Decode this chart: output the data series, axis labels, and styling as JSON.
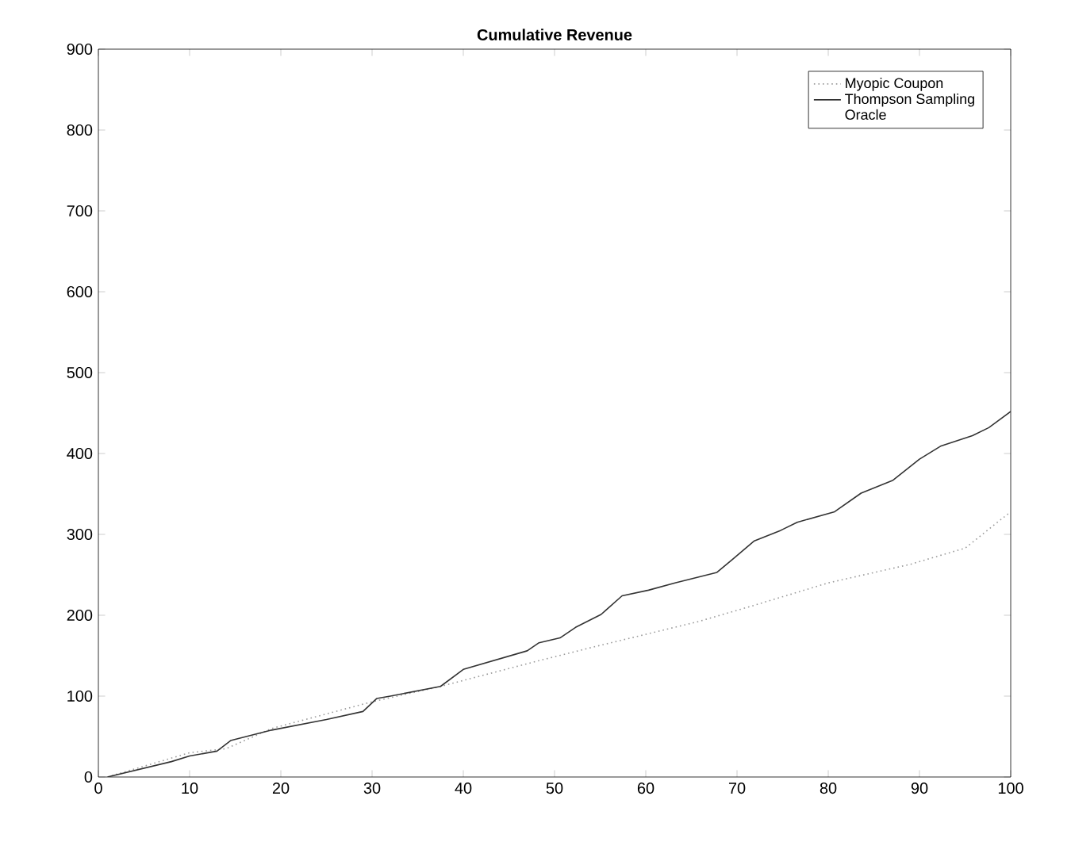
{
  "chart_data": {
    "type": "line",
    "title": "Cumulative Revenue",
    "xlim": [
      0,
      100
    ],
    "ylim": [
      0,
      900
    ],
    "xticks": [
      0,
      10,
      20,
      30,
      40,
      50,
      60,
      70,
      80,
      90,
      100
    ],
    "yticks": [
      0,
      100,
      200,
      300,
      400,
      500,
      600,
      700,
      800,
      900
    ],
    "grid": false,
    "legend": "top right",
    "series": [
      {
        "name": "Myopic Coupon",
        "color": "#9a9a9a",
        "line_style": "dotted",
        "x": [
          1,
          10,
          14,
          19,
          30,
          37.5,
          48,
          54,
          65.7,
          71.5,
          80,
          89,
          95,
          100
        ],
        "values": [
          0,
          30,
          35,
          60,
          93,
          112,
          143,
          160,
          192,
          211,
          240,
          263,
          283,
          328
        ]
      },
      {
        "name": "Thompson Sampling",
        "color": "#333333",
        "line_style": "solid",
        "x": [
          1,
          8,
          10,
          13,
          14.5,
          19,
          25,
          29,
          30.5,
          32,
          37.5,
          40,
          47,
          48.3,
          50.6,
          52.3,
          55.1,
          57.4,
          60.3,
          63.2,
          67.8,
          69.6,
          71.9,
          74.8,
          76.6,
          80.7,
          83.6,
          87.1,
          90,
          92.3,
          95.8,
          97.6,
          100
        ],
        "values": [
          0,
          19,
          26,
          32,
          45,
          58,
          71,
          81,
          97,
          100,
          112,
          133,
          156,
          166,
          172,
          185,
          201,
          224,
          231,
          240,
          253,
          270,
          292,
          305,
          315,
          328,
          351,
          367,
          393,
          409,
          422,
          432,
          452
        ]
      },
      {
        "name": "Oracle"
      }
    ]
  }
}
